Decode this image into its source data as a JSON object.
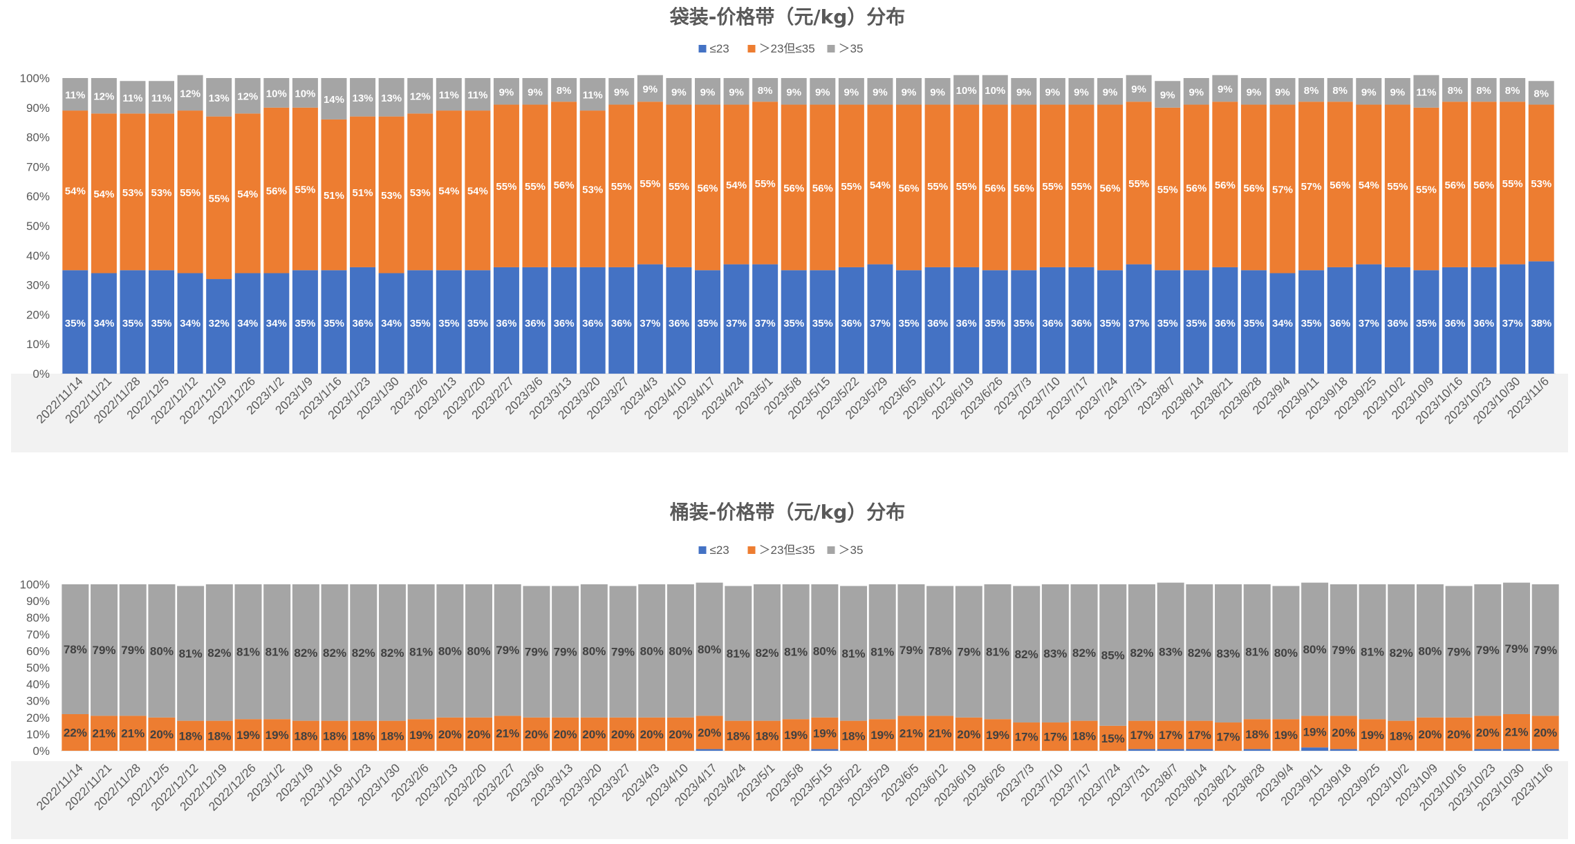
{
  "chart_data": [
    {
      "type": "bar",
      "stacked": "percent",
      "title": "袋装-价格带（元/kg）分布",
      "xlabel": "",
      "ylabel": "",
      "ylim": [
        0,
        100
      ],
      "yticks": [
        "0%",
        "10%",
        "20%",
        "30%",
        "40%",
        "50%",
        "60%",
        "70%",
        "80%",
        "90%",
        "100%"
      ],
      "legend_position": "top",
      "colors": [
        "#4472C4",
        "#ED7D31",
        "#A5A5A5"
      ],
      "label_colors": [
        "#ffffff",
        "#ffffff",
        "#ffffff"
      ],
      "categories": [
        "2022/11/14",
        "2022/11/21",
        "2022/11/28",
        "2022/12/5",
        "2022/12/12",
        "2022/12/19",
        "2022/12/26",
        "2023/1/2",
        "2023/1/9",
        "2023/1/16",
        "2023/1/23",
        "2023/1/30",
        "2023/2/6",
        "2023/2/13",
        "2023/2/20",
        "2023/2/27",
        "2023/3/6",
        "2023/3/13",
        "2023/3/20",
        "2023/3/27",
        "2023/4/3",
        "2023/4/10",
        "2023/4/17",
        "2023/4/24",
        "2023/5/1",
        "2023/5/8",
        "2023/5/15",
        "2023/5/22",
        "2023/5/29",
        "2023/6/5",
        "2023/6/12",
        "2023/6/19",
        "2023/6/26",
        "2023/7/3",
        "2023/7/10",
        "2023/7/17",
        "2023/7/24",
        "2023/7/31",
        "2023/8/7",
        "2023/8/14",
        "2023/8/21",
        "2023/8/28",
        "2023/9/4",
        "2023/9/11",
        "2023/9/18",
        "2023/9/25",
        "2023/10/2",
        "2023/10/9",
        "2023/10/16",
        "2023/10/23",
        "2023/10/30",
        "2023/11/6"
      ],
      "series": [
        {
          "name": "≤23",
          "values": [
            35,
            34,
            35,
            35,
            34,
            32,
            34,
            34,
            35,
            35,
            36,
            34,
            35,
            35,
            35,
            36,
            36,
            36,
            36,
            36,
            37,
            36,
            35,
            37,
            37,
            35,
            35,
            36,
            37,
            35,
            36,
            36,
            35,
            35,
            36,
            36,
            35,
            37,
            35,
            35,
            36,
            35,
            34,
            35,
            36,
            37,
            36,
            35,
            36,
            36,
            37,
            38
          ]
        },
        {
          "name": "＞23但≤35",
          "values": [
            54,
            54,
            53,
            53,
            55,
            55,
            54,
            56,
            55,
            51,
            51,
            53,
            53,
            54,
            54,
            55,
            55,
            56,
            53,
            55,
            55,
            55,
            56,
            54,
            55,
            56,
            56,
            55,
            54,
            56,
            55,
            55,
            56,
            56,
            55,
            55,
            56,
            55,
            55,
            56,
            56,
            56,
            57,
            57,
            56,
            54,
            55,
            55,
            56,
            56,
            55,
            53
          ]
        },
        {
          "name": "＞35",
          "values": [
            11,
            12,
            11,
            11,
            12,
            13,
            12,
            10,
            10,
            14,
            13,
            13,
            12,
            11,
            11,
            9,
            9,
            8,
            11,
            9,
            9,
            9,
            9,
            9,
            8,
            9,
            9,
            9,
            9,
            9,
            9,
            10,
            10,
            9,
            9,
            9,
            9,
            9,
            9,
            9,
            9,
            9,
            9,
            8,
            8,
            9,
            9,
            11,
            8,
            8,
            8,
            8
          ]
        }
      ]
    },
    {
      "type": "bar",
      "stacked": "percent",
      "title": "桶装-价格带（元/kg）分布",
      "xlabel": "",
      "ylabel": "",
      "ylim": [
        0,
        100
      ],
      "yticks": [
        "0%",
        "10%",
        "20%",
        "30%",
        "40%",
        "50%",
        "60%",
        "70%",
        "80%",
        "90%",
        "100%"
      ],
      "legend_position": "top",
      "colors": [
        "#4472C4",
        "#ED7D31",
        "#A5A5A5"
      ],
      "label_colors": [
        "#ffffff",
        "#404040",
        "#404040"
      ],
      "categories": [
        "2022/11/14",
        "2022/11/21",
        "2022/11/28",
        "2022/12/5",
        "2022/12/12",
        "2022/12/19",
        "2022/12/26",
        "2023/1/2",
        "2023/1/9",
        "2023/1/16",
        "2023/1/23",
        "2023/1/30",
        "2023/2/6",
        "2023/2/13",
        "2023/2/20",
        "2023/2/27",
        "2023/3/6",
        "2023/3/13",
        "2023/3/20",
        "2023/3/27",
        "2023/4/3",
        "2023/4/10",
        "2023/4/17",
        "2023/4/24",
        "2023/5/1",
        "2023/5/8",
        "2023/5/15",
        "2023/5/22",
        "2023/5/29",
        "2023/6/5",
        "2023/6/12",
        "2023/6/19",
        "2023/6/26",
        "2023/7/3",
        "2023/7/10",
        "2023/7/17",
        "2023/7/24",
        "2023/7/31",
        "2023/8/7",
        "2023/8/14",
        "2023/8/21",
        "2023/8/28",
        "2023/9/4",
        "2023/9/11",
        "2023/9/18",
        "2023/9/25",
        "2023/10/2",
        "2023/10/9",
        "2023/10/16",
        "2023/10/23",
        "2023/10/30",
        "2023/11/6"
      ],
      "series": [
        {
          "name": "≤23",
          "values": [
            0,
            0,
            0,
            0,
            0,
            0,
            0,
            0,
            0,
            0,
            0,
            0,
            0,
            0,
            0,
            0,
            0,
            0,
            0,
            0,
            0,
            0,
            1,
            0,
            0,
            0,
            1,
            0,
            0,
            0,
            0,
            0,
            0,
            0,
            0,
            0,
            0,
            1,
            1,
            1,
            0,
            1,
            0,
            2,
            1,
            0,
            0,
            0,
            0,
            1,
            1,
            1
          ]
        },
        {
          "name": "＞23但≤35",
          "values": [
            22,
            21,
            21,
            20,
            18,
            18,
            19,
            19,
            18,
            18,
            18,
            18,
            19,
            20,
            20,
            21,
            20,
            20,
            20,
            20,
            20,
            20,
            20,
            18,
            18,
            19,
            19,
            18,
            19,
            21,
            21,
            20,
            19,
            17,
            17,
            18,
            15,
            17,
            17,
            17,
            17,
            18,
            19,
            19,
            20,
            19,
            18,
            20,
            20,
            20,
            21,
            20
          ]
        },
        {
          "name": "＞35",
          "values": [
            78,
            79,
            79,
            80,
            81,
            82,
            81,
            81,
            82,
            82,
            82,
            82,
            81,
            80,
            80,
            79,
            79,
            79,
            80,
            79,
            80,
            80,
            80,
            81,
            82,
            81,
            80,
            81,
            81,
            79,
            78,
            79,
            81,
            82,
            83,
            82,
            85,
            82,
            83,
            82,
            83,
            81,
            80,
            80,
            79,
            81,
            82,
            80,
            79,
            79,
            79,
            79
          ]
        }
      ]
    }
  ]
}
